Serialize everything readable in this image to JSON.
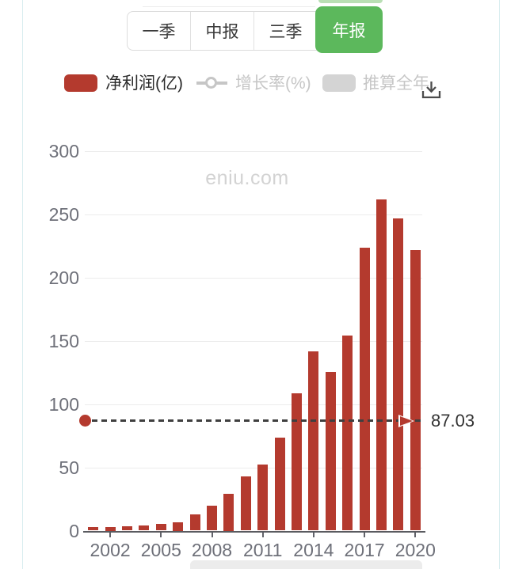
{
  "tabs": {
    "items": [
      {
        "label": "一季",
        "active": false
      },
      {
        "label": "中报",
        "active": false
      },
      {
        "label": "三季",
        "active": false
      },
      {
        "label": "年报",
        "active": true
      }
    ],
    "active_color": "#5cb85c",
    "active_strip_color": "#b9dfb4"
  },
  "legend": {
    "items": [
      {
        "label": "净利润(亿)",
        "type": "bar",
        "color": "#b43a2e",
        "enabled": true
      },
      {
        "label": "增长率(%)",
        "type": "line",
        "color": "#c6c6c6",
        "enabled": false
      },
      {
        "label": "推算全年",
        "type": "bar",
        "color": "#d4d4d4",
        "enabled": false
      }
    ],
    "download_icon": "download"
  },
  "marker": {
    "label": "87.03"
  },
  "chart_data": {
    "type": "bar",
    "title": "",
    "categories": [
      "2001",
      "2002",
      "2003",
      "2004",
      "2005",
      "2006",
      "2007",
      "2008",
      "2009",
      "2010",
      "2011",
      "2012",
      "2013",
      "2014",
      "2015",
      "2016",
      "2017",
      "2018",
      "2019",
      "2020"
    ],
    "series": [
      {
        "name": "净利润(亿)",
        "values": [
          2.6,
          3.1,
          3.4,
          4.2,
          5.1,
          6.9,
          12.7,
          19.6,
          29.1,
          42.8,
          52.4,
          73.8,
          108.7,
          141.6,
          125.3,
          154.2,
          224.0,
          262.0,
          247.0,
          221.8
        ]
      }
    ],
    "visible_xtick_labels": [
      "2002",
      "2005",
      "2008",
      "2011",
      "2014",
      "2017",
      "2020"
    ],
    "xlabel": "",
    "ylabel": "",
    "ylim": [
      0,
      300
    ],
    "yticks": [
      0,
      50,
      100,
      150,
      200,
      250,
      300
    ],
    "bar_color": "#b43a2e",
    "grid": "horizontal",
    "legend_position": "top",
    "markline": {
      "value": 87.03,
      "label": "87.03",
      "style": "dashed",
      "line_color": "#3f3f3f"
    },
    "watermark": "eniu.com"
  }
}
